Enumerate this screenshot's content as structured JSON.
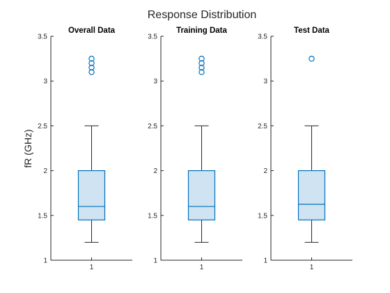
{
  "chart_data": {
    "type": "boxplot",
    "title": "Response Distribution",
    "ylabel": "fR (GHz)",
    "ylim": [
      1,
      3.5
    ],
    "yticks": [
      1,
      1.5,
      2,
      2.5,
      3,
      3.5
    ],
    "ytick_labels": [
      "1",
      "1.5",
      "2",
      "2.5",
      "3",
      "3.5"
    ],
    "colors": {
      "box": "#0072BD",
      "box_fill": "#cfe3f2",
      "whisker": "#262626",
      "axis": "#262626"
    },
    "panels": [
      {
        "title": "Overall Data",
        "xtick_label": "1",
        "box": {
          "whisker_low": 1.2,
          "q1": 1.45,
          "median": 1.6,
          "q3": 2.0,
          "whisker_high": 2.5
        },
        "outliers": [
          3.1,
          3.15,
          3.2,
          3.25
        ]
      },
      {
        "title": "Training Data",
        "xtick_label": "1",
        "box": {
          "whisker_low": 1.2,
          "q1": 1.45,
          "median": 1.6,
          "q3": 2.0,
          "whisker_high": 2.5
        },
        "outliers": [
          3.1,
          3.15,
          3.2,
          3.25
        ]
      },
      {
        "title": "Test Data",
        "xtick_label": "1",
        "box": {
          "whisker_low": 1.2,
          "q1": 1.45,
          "median": 1.625,
          "q3": 2.0,
          "whisker_high": 2.5
        },
        "outliers": [
          3.25
        ]
      }
    ]
  }
}
